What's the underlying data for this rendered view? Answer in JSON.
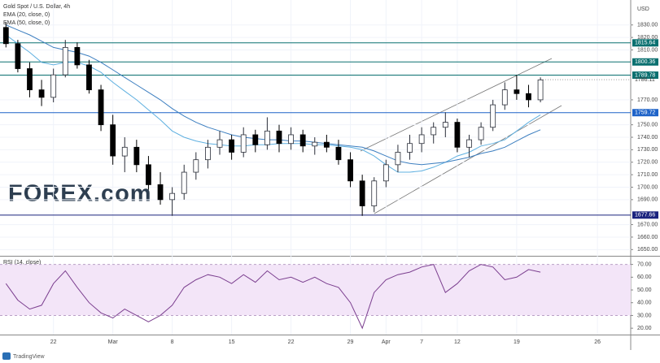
{
  "chart_data": [
    {
      "type": "candlestick",
      "title": "Gold Spot / U.S. Dollar, 4h",
      "currency": "USD",
      "watermark": "FOREX.com",
      "footer": "TradingView",
      "x": [
        -4,
        -3,
        -2,
        -1,
        0,
        1,
        2,
        3,
        4,
        5,
        6,
        7,
        8,
        9,
        10,
        11,
        12,
        13,
        14,
        15,
        16,
        17,
        18,
        19,
        20,
        21,
        22,
        23,
        24,
        25,
        26,
        27,
        28,
        29,
        30,
        31,
        32,
        33,
        34,
        35,
        36,
        37,
        38,
        39,
        40,
        41
      ],
      "open": [
        1828,
        1815,
        1795,
        1778,
        1772,
        1790,
        1812,
        1798,
        1778,
        1750,
        1725,
        1732,
        1718,
        1702,
        1690,
        1695,
        1712,
        1722,
        1732,
        1738,
        1728,
        1742,
        1734,
        1745,
        1735,
        1742,
        1733,
        1736,
        1732,
        1722,
        1705,
        1685,
        1705,
        1718,
        1728,
        1735,
        1742,
        1748,
        1752,
        1732,
        1738,
        1748,
        1766,
        1778,
        1775,
        1770
      ],
      "high": [
        1832,
        1818,
        1800,
        1786,
        1795,
        1818,
        1816,
        1802,
        1782,
        1758,
        1740,
        1738,
        1725,
        1712,
        1700,
        1718,
        1728,
        1738,
        1745,
        1742,
        1748,
        1746,
        1756,
        1750,
        1748,
        1746,
        1740,
        1742,
        1738,
        1728,
        1710,
        1708,
        1722,
        1734,
        1742,
        1748,
        1752,
        1760,
        1755,
        1742,
        1752,
        1770,
        1784,
        1790,
        1782,
        1788
      ],
      "low": [
        1812,
        1792,
        1772,
        1765,
        1768,
        1788,
        1795,
        1775,
        1745,
        1718,
        1712,
        1712,
        1698,
        1686,
        1677,
        1690,
        1706,
        1715,
        1726,
        1722,
        1724,
        1728,
        1730,
        1728,
        1730,
        1728,
        1726,
        1728,
        1718,
        1700,
        1677,
        1680,
        1700,
        1712,
        1722,
        1728,
        1735,
        1740,
        1728,
        1724,
        1734,
        1745,
        1762,
        1770,
        1764,
        1768
      ],
      "close": [
        1815,
        1795,
        1778,
        1772,
        1790,
        1812,
        1798,
        1778,
        1750,
        1725,
        1732,
        1718,
        1702,
        1690,
        1695,
        1712,
        1722,
        1732,
        1738,
        1728,
        1742,
        1734,
        1745,
        1735,
        1742,
        1733,
        1736,
        1732,
        1722,
        1705,
        1685,
        1705,
        1718,
        1728,
        1735,
        1742,
        1748,
        1752,
        1732,
        1738,
        1748,
        1766,
        1778,
        1775,
        1770,
        1786
      ],
      "up_color": "#2a2e39",
      "down_color": "#000000",
      "series": [
        {
          "name": "EMA (20, close, 0)",
          "color": "#5fb0e0",
          "values": [
            1822,
            1815,
            1808,
            1800,
            1798,
            1800,
            1800,
            1797,
            1792,
            1784,
            1777,
            1770,
            1762,
            1754,
            1745,
            1740,
            1737,
            1735,
            1734,
            1733,
            1733,
            1734,
            1734,
            1735,
            1735,
            1735,
            1734,
            1734,
            1733,
            1732,
            1730,
            1725,
            1718,
            1712,
            1712,
            1713,
            1716,
            1720,
            1725,
            1728,
            1733,
            1735,
            1738,
            1745,
            1752,
            1758
          ]
        },
        {
          "name": "EMA (50, close, 0)",
          "color": "#3d7fc0",
          "values": [
            1830,
            1826,
            1822,
            1817,
            1812,
            1810,
            1808,
            1805,
            1800,
            1794,
            1788,
            1782,
            1776,
            1770,
            1763,
            1757,
            1752,
            1748,
            1745,
            1742,
            1740,
            1739,
            1738,
            1738,
            1737,
            1737,
            1736,
            1735,
            1734,
            1733,
            1732,
            1729,
            1725,
            1721,
            1719,
            1718,
            1719,
            1720,
            1722,
            1724,
            1727,
            1729,
            1732,
            1737,
            1742,
            1746
          ]
        }
      ],
      "levels": [
        {
          "value": 1815.64,
          "color": "#0a7070"
        },
        {
          "value": 1800.36,
          "color": "#0a7070"
        },
        {
          "value": 1789.78,
          "color": "#0a7070"
        },
        {
          "value": 1759.72,
          "color": "#1e63c8"
        },
        {
          "value": 1677.66,
          "color": "#1a237e"
        }
      ],
      "last_price": 1786.11,
      "xlim": [
        -4.5,
        48.6
      ],
      "xticks": [
        {
          "value": 0,
          "label": "22"
        },
        {
          "value": 5,
          "label": "Mar"
        },
        {
          "value": 10,
          "label": "8"
        },
        {
          "value": 15,
          "label": "15"
        },
        {
          "value": 20,
          "label": "22"
        },
        {
          "value": 25,
          "label": "29"
        },
        {
          "value": 28,
          "label": "Apr"
        },
        {
          "value": 31,
          "label": "7"
        },
        {
          "value": 34,
          "label": "12"
        },
        {
          "value": 39,
          "label": "19"
        },
        {
          "value": 45.8,
          "label": "26"
        }
      ],
      "ylim": [
        1645,
        1850
      ],
      "yticks": [
        {
          "value": 1650,
          "label": "1650.00"
        },
        {
          "value": 1660,
          "label": "1660.00"
        },
        {
          "value": 1670,
          "label": "1670.00"
        },
        {
          "value": 1690,
          "label": "1690.00"
        },
        {
          "value": 1700,
          "label": "1700.00"
        },
        {
          "value": 1710,
          "label": "1710.00"
        },
        {
          "value": 1720,
          "label": "1720.00"
        },
        {
          "value": 1730,
          "label": "1730.00"
        },
        {
          "value": 1740,
          "label": "1740.00"
        },
        {
          "value": 1750,
          "label": "1750.00"
        },
        {
          "value": 1770,
          "label": "1770.00"
        },
        {
          "value": 1810,
          "label": "1810.00"
        },
        {
          "value": 1820,
          "label": "1820.00"
        },
        {
          "value": 1830,
          "label": "1830.00"
        }
      ]
    },
    {
      "type": "line",
      "title": "RSI (14, close)",
      "color": "#7b3f8f",
      "band": [
        30,
        70
      ],
      "band_color": "#f3e5f8",
      "x": [
        -4,
        -3,
        -2,
        -1,
        0,
        1,
        2,
        3,
        4,
        5,
        6,
        7,
        8,
        9,
        10,
        11,
        12,
        13,
        14,
        15,
        16,
        17,
        18,
        19,
        20,
        21,
        22,
        23,
        24,
        25,
        26,
        27,
        28,
        29,
        30,
        31,
        32,
        33,
        34,
        35,
        36,
        37,
        38,
        39,
        40,
        41
      ],
      "values": [
        55,
        42,
        35,
        38,
        55,
        65,
        52,
        40,
        32,
        28,
        35,
        30,
        25,
        30,
        38,
        52,
        58,
        62,
        60,
        55,
        62,
        56,
        65,
        58,
        60,
        56,
        60,
        55,
        52,
        40,
        20,
        48,
        58,
        62,
        64,
        68,
        70,
        48,
        55,
        65,
        70,
        68,
        58,
        60,
        66,
        64
      ],
      "xlim": [
        -4.5,
        48.6
      ],
      "ylim": [
        15,
        75.5
      ],
      "yticks": [
        {
          "value": 20,
          "label": "20.00"
        },
        {
          "value": 30,
          "label": "30.00"
        },
        {
          "value": 40,
          "label": "40.00"
        },
        {
          "value": 50,
          "label": "50.00"
        },
        {
          "value": 60,
          "label": "60.00"
        },
        {
          "value": 70,
          "label": "70.00"
        }
      ]
    }
  ]
}
